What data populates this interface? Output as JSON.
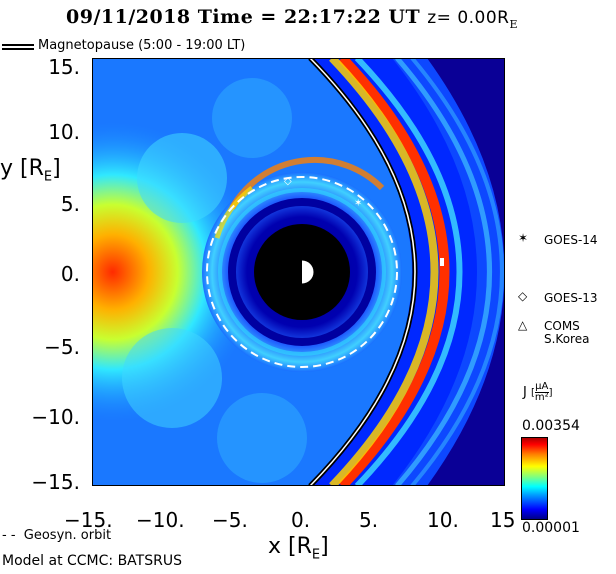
{
  "header": {
    "title_prefix": "09/11/2018 Time = 22:17:22 UT",
    "title_z": "z= 0.00R",
    "title_sub": "E"
  },
  "legend": {
    "magnetopause": "Magnetopause (5:00 - 19:00 LT)",
    "geosync": "Geosyn. orbit"
  },
  "axes": {
    "ylabel_main": "y [R",
    "ylabel_sub": "E",
    "ylabel_end": "]",
    "xlabel_main": "x [R",
    "xlabel_sub": "E",
    "xlabel_end": "]",
    "yticks": [
      "15.",
      "10.",
      "5.",
      "0.",
      "−5.",
      "−10.",
      "−15."
    ],
    "xticks": [
      "−15.",
      "−10.",
      "−5.",
      "0.",
      "5.",
      "10.",
      "15"
    ]
  },
  "satellites": [
    {
      "symbol": "✶",
      "label": "GOES-14"
    },
    {
      "symbol": "◇",
      "label": "GOES-13"
    },
    {
      "symbol": "△",
      "label": "COMS",
      "label2": "S.Korea"
    }
  ],
  "colorbar": {
    "title": "J",
    "unit_num": "μA",
    "unit_den": "m²",
    "max": "0.00354",
    "min": "0.00001"
  },
  "footer": {
    "model": "Model at CCMC: BATSRUS"
  },
  "colors": {
    "background_field": "#0000d8",
    "solar_wind": "#0a0096",
    "earth_shadow": "#000000"
  }
}
